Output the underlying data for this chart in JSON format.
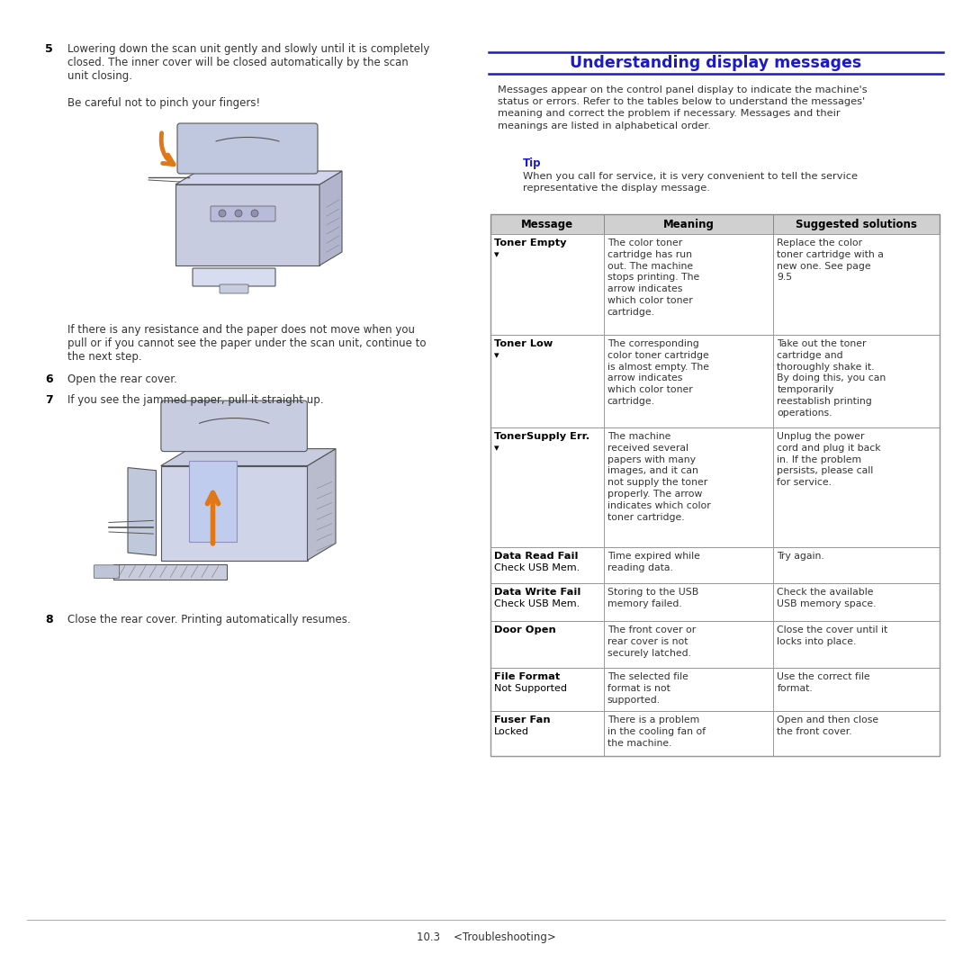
{
  "title": "Understanding display messages",
  "title_color": "#1a1aCC",
  "blue_color": "#1a1aCC",
  "orange_color": "#E07818",
  "bg_color": "#FFFFFF",
  "border_color": "#999999",
  "header_bg": "#D0D0D0",
  "body_text_color": "#333333",
  "bold_text_color": "#000000",
  "section_intro": "Messages appear on the control panel display to indicate the machine's\nstatus or errors. Refer to the tables below to understand the messages'\nmeaning and correct the problem if necessary. Messages and their\nmeanings are listed in alphabetical order.",
  "tip_label": "Tip",
  "tip_text": "When you call for service, it is very convenient to tell the service\nrepresentative the display message.",
  "table_headers": [
    "Message",
    "Meaning",
    "Suggested solutions"
  ],
  "table_rows": [
    {
      "message": "Toner Empty\n▾",
      "meaning": "The color toner\ncartridge has run\nout. The machine\nstops printing. The\narrow indicates\nwhich color toner\ncartridge.",
      "solution": "Replace the color\ntoner cartridge with a\nnew one. See page\n9.5"
    },
    {
      "message": "Toner Low\n▾",
      "meaning": "The corresponding\ncolor toner cartridge\nis almost empty. The\narrow indicates\nwhich color toner\ncartridge.",
      "solution": "Take out the toner\ncartridge and\nthoroughly shake it.\nBy doing this, you can\ntemporarily\nreestablish printing\noperations."
    },
    {
      "message": "TonerSupply Err.\n▾",
      "meaning": "The machine\nreceived several\npapers with many\nimages, and it can\nnot supply the toner\nproperly. The arrow\nindicates which color\ntoner cartridge.",
      "solution": "Unplug the power\ncord and plug it back\nin. If the problem\npersists, please call\nfor service."
    },
    {
      "message": "Data Read Fail\nCheck USB Mem.",
      "meaning": "Time expired while\nreading data.",
      "solution": "Try again."
    },
    {
      "message": "Data Write Fail\nCheck USB Mem.",
      "meaning": "Storing to the USB\nmemory failed.",
      "solution": "Check the available\nUSB memory space."
    },
    {
      "message": "Door Open",
      "meaning": "The front cover or\nrear cover is not\nsecurely latched.",
      "solution": "Close the cover until it\nlocks into place."
    },
    {
      "message": "File Format\nNot Supported",
      "meaning": "The selected file\nformat is not\nsupported.",
      "solution": "Use the correct file\nformat."
    },
    {
      "message": "Fuser Fan\nLocked",
      "meaning": "There is a problem\nin the cooling fan of\nthe machine.",
      "solution": "Open and then close\nthe front cover."
    }
  ],
  "left_step5_num": "5",
  "left_step5_text": "Lowering down the scan unit gently and slowly until it is completely\nclosed. The inner cover will be closed automatically by the scan\nunit closing.",
  "left_step5_sub": "Be careful not to pinch your fingers!",
  "left_step6_num": "6",
  "left_step6_text": "Open the rear cover.",
  "left_step7_num": "7",
  "left_step7_text": "If you see the jammed paper, pull it straight up.",
  "left_step8_num": "8",
  "left_step8_text": "Close the rear cover. Printing automatically resumes.",
  "left_resistance_text": "If there is any resistance and the paper does not move when you\npull or if you cannot see the paper under the scan unit, continue to\nthe next step.",
  "footer_text": "10.3    <Troubleshooting>"
}
